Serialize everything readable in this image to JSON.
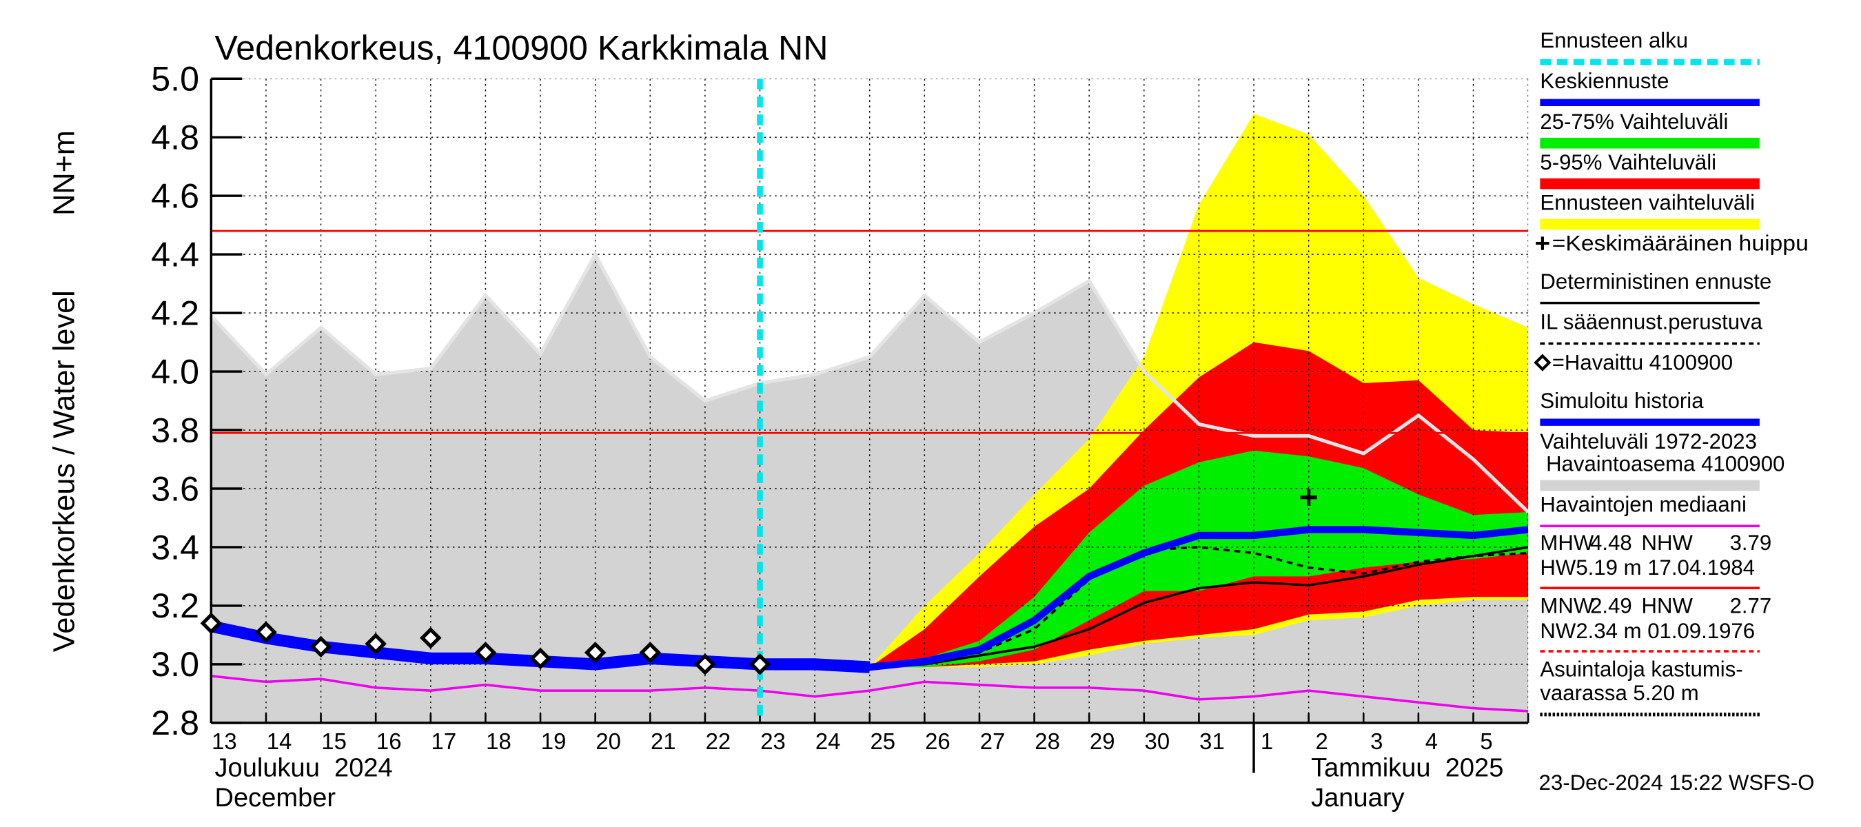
{
  "chart_data": {
    "type": "line",
    "title": "Vedenkorkeus, 4100900 Karkkimala NN",
    "y_label": "Vedenkorkeus / Water level",
    "y_unit": "NN+m",
    "categories": [
      "13",
      "14",
      "15",
      "16",
      "17",
      "18",
      "19",
      "20",
      "21",
      "22",
      "23",
      "24",
      "25",
      "26",
      "27",
      "28",
      "29",
      "30",
      "31",
      "1",
      "2",
      "3",
      "4",
      "5",
      null
    ],
    "x_groups": [
      {
        "label": "Joulukuu  2024",
        "sublabel": "December",
        "start": "13"
      },
      {
        "label": "Tammikuu  2025",
        "sublabel": "January",
        "start": "1"
      }
    ],
    "ylim": [
      2.8,
      5.0
    ],
    "yticks": [
      2.8,
      {
        "value": 3.0,
        "label": "3.0"
      },
      3.2,
      3.4,
      3.6,
      3.8,
      {
        "value": 4.0,
        "label": "4.0"
      },
      4.2,
      4.4,
      4.6,
      4.8,
      {
        "value": 5.0,
        "label": "5.0"
      }
    ],
    "grid": true,
    "series": [
      {
        "name": "Ennusteen alku",
        "kind": "vline",
        "color": "#00e5ee",
        "dash": true,
        "at": "23"
      },
      {
        "name": "Keskiennuste",
        "kind": "line",
        "color": "#0000ff",
        "width": 6,
        "values": [
          null,
          null,
          null,
          null,
          null,
          null,
          null,
          null,
          null,
          null,
          null,
          null,
          2.99,
          3.01,
          3.05,
          3.15,
          3.3,
          3.38,
          3.44,
          3.44,
          3.46,
          3.46,
          3.45,
          3.44,
          3.46
        ]
      },
      {
        "name": "25-75% Vaihteluväli",
        "kind": "band",
        "color": "#00ee00",
        "upper": [
          null,
          null,
          null,
          null,
          null,
          null,
          null,
          null,
          null,
          null,
          null,
          null,
          2.99,
          3.02,
          3.08,
          3.23,
          3.45,
          3.61,
          3.69,
          3.73,
          3.71,
          3.67,
          3.58,
          3.51,
          3.52
        ],
        "lower": [
          null,
          null,
          null,
          null,
          null,
          null,
          null,
          null,
          null,
          null,
          null,
          null,
          2.99,
          2.99,
          3.01,
          3.05,
          3.15,
          3.25,
          3.25,
          3.3,
          3.3,
          3.33,
          3.35,
          3.36,
          3.38
        ]
      },
      {
        "name": "5-95% Vaihteluväli",
        "kind": "band",
        "color": "#ff0000",
        "upper": [
          null,
          null,
          null,
          null,
          null,
          null,
          null,
          null,
          null,
          null,
          null,
          null,
          2.99,
          3.12,
          3.3,
          3.47,
          3.6,
          3.8,
          3.98,
          4.1,
          4.07,
          3.96,
          3.97,
          3.8,
          3.79
        ],
        "lower": [
          null,
          null,
          null,
          null,
          null,
          null,
          null,
          null,
          null,
          null,
          null,
          null,
          2.99,
          2.99,
          3.0,
          3.01,
          3.05,
          3.08,
          3.1,
          3.12,
          3.17,
          3.18,
          3.22,
          3.23,
          3.23
        ]
      },
      {
        "name": "Ennusteen vaihteluväli",
        "kind": "band",
        "color": "#ffff00",
        "upper": [
          null,
          null,
          null,
          null,
          null,
          null,
          null,
          null,
          null,
          null,
          null,
          null,
          2.99,
          3.2,
          3.38,
          3.58,
          3.77,
          4.05,
          4.57,
          4.88,
          4.81,
          4.6,
          4.32,
          4.23,
          4.15
        ],
        "lower": [
          null,
          null,
          null,
          null,
          null,
          null,
          null,
          null,
          null,
          null,
          null,
          null,
          2.99,
          2.99,
          2.99,
          3.0,
          3.03,
          3.07,
          3.09,
          3.1,
          3.15,
          3.16,
          3.2,
          3.22,
          3.22
        ]
      },
      {
        "name": "=Keskimääräinen huippu",
        "kind": "marker",
        "marker": "plus",
        "color": "#000000",
        "values": [
          null,
          null,
          null,
          null,
          null,
          null,
          null,
          null,
          null,
          null,
          null,
          null,
          null,
          null,
          null,
          null,
          null,
          null,
          null,
          null,
          3.57,
          null,
          null,
          null,
          null
        ]
      },
      {
        "name": "Deterministinen ennuste",
        "kind": "line",
        "color": "#000000",
        "width": 2,
        "values": [
          null,
          null,
          null,
          null,
          null,
          null,
          null,
          null,
          null,
          null,
          null,
          null,
          2.99,
          3.0,
          3.03,
          3.06,
          3.12,
          3.21,
          3.26,
          3.28,
          3.27,
          3.3,
          3.34,
          3.37,
          3.4
        ]
      },
      {
        "name": "IL sääennust.perustuva",
        "kind": "line",
        "color": "#000000",
        "width": 2,
        "dash": true,
        "values": [
          null,
          null,
          null,
          null,
          null,
          null,
          null,
          null,
          null,
          null,
          null,
          null,
          2.99,
          3.01,
          3.04,
          3.12,
          3.29,
          3.39,
          3.4,
          3.38,
          3.33,
          3.31,
          3.35,
          3.37,
          3.38
        ]
      },
      {
        "name": "=Havaittu 4100900",
        "kind": "marker",
        "marker": "diamond",
        "color": "#000000",
        "values": [
          3.14,
          3.11,
          3.06,
          3.07,
          3.09,
          3.04,
          3.02,
          3.04,
          3.04,
          3.0,
          3.0,
          null,
          null,
          null,
          null,
          null,
          null,
          null,
          null,
          null,
          null,
          null,
          null,
          null,
          null
        ]
      },
      {
        "name": "Simuloitu historia",
        "kind": "line",
        "color": "#0000ff",
        "width": 10,
        "values": [
          3.13,
          3.09,
          3.06,
          3.04,
          3.02,
          3.02,
          3.01,
          3.0,
          3.02,
          3.01,
          3.0,
          3.0,
          2.99,
          null,
          null,
          null,
          null,
          null,
          null,
          null,
          null,
          null,
          null,
          null,
          null
        ]
      },
      {
        "name": "Vaihteluväli 1972-2023",
        "note": " Havaintoasema 4100900",
        "kind": "range",
        "color": "#d3d3d3",
        "edge": "#e4e4e4",
        "values": [
          4.19,
          3.99,
          4.15,
          3.99,
          4.01,
          4.26,
          4.06,
          4.4,
          4.05,
          3.9,
          3.96,
          3.99,
          4.05,
          4.26,
          4.1,
          4.2,
          4.31,
          4.0,
          3.82,
          3.78,
          3.78,
          3.72,
          3.85,
          3.7,
          3.52
        ]
      },
      {
        "name": "Havaintojen mediaani",
        "kind": "line",
        "color": "#ee00ee",
        "width": 2,
        "values": [
          2.96,
          2.94,
          2.95,
          2.92,
          2.91,
          2.93,
          2.91,
          2.91,
          2.91,
          2.92,
          2.91,
          2.89,
          2.91,
          2.94,
          2.93,
          2.92,
          2.92,
          2.91,
          2.88,
          2.89,
          2.91,
          2.89,
          2.87,
          2.85,
          2.84
        ]
      }
    ],
    "stats": [
      {
        "pairs": [
          {
            "label": "MHW",
            "value": 4.48
          },
          {
            "label": "NHW",
            "value": 3.79
          }
        ],
        "extreme": {
          "label": "HW",
          "text": "5.19 m 17.04.1984"
        },
        "color": "#ff0000",
        "dash": false
      },
      {
        "pairs": [
          {
            "label": "MNW",
            "value": 2.49
          },
          {
            "label": "HNW",
            "value": 2.77
          }
        ],
        "extreme": {
          "label": "NW",
          "text": "2.34 m 01.09.1976"
        },
        "color": "#ff0000",
        "dash": true
      }
    ],
    "flood": [
      "Asuintaloja kastumis-",
      "vaarassa 5.20 m"
    ],
    "timestamp": "23-Dec-2024 15:22 WSFS-O"
  }
}
